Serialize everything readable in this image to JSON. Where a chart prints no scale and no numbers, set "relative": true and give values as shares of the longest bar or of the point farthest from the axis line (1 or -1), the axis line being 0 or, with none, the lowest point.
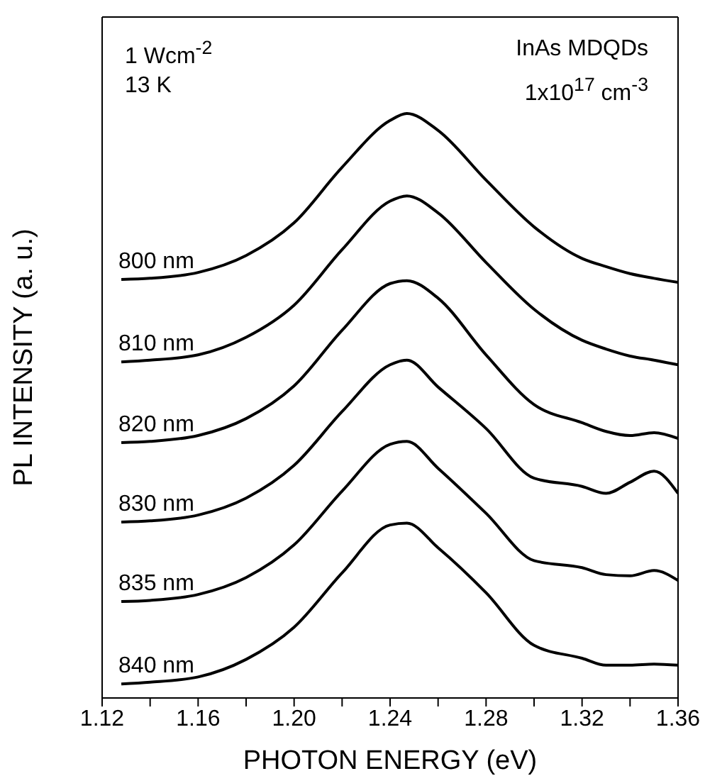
{
  "chart_data": {
    "type": "line",
    "relative": true,
    "xlabel": "PHOTON ENERGY (eV)",
    "ylabel": "PL INTENSITY (a. u.)",
    "annotations": [
      "1 Wcm$^{-2}$",
      "13 K",
      "InAs MDQDs",
      "1x10$^{17}$ cm$^{-3}$"
    ],
    "xlim": [
      1.12,
      1.36
    ],
    "xticks": [
      1.12,
      {
        "value": 1.14,
        "label": null
      },
      1.16,
      {
        "value": 1.18,
        "label": null
      },
      {
        "value": 1.2,
        "label": "1.20"
      },
      {
        "value": 1.22,
        "label": null
      },
      1.24,
      {
        "value": 1.26,
        "label": null
      },
      1.28,
      {
        "value": 1.3,
        "label": null
      },
      1.32,
      {
        "value": 1.34,
        "label": null
      },
      1.36
    ],
    "x": [
      1.128,
      1.14,
      1.16,
      1.18,
      1.2,
      1.22,
      1.24,
      1.247,
      1.26,
      1.28,
      1.3,
      1.32,
      1.33,
      1.34,
      1.35,
      1.36
    ],
    "marker": "none",
    "line_style": "solid",
    "legend": false,
    "series": [
      {
        "name": "800 nm",
        "color": "#000000",
        "values": [
          0.716,
          0.718,
          0.728,
          0.757,
          0.813,
          0.908,
          0.988,
          1.0,
          0.971,
          0.886,
          0.806,
          0.752,
          0.738,
          0.726,
          0.718,
          0.711
        ]
      },
      {
        "name": "810 nm",
        "color": "#000000",
        "values": [
          0.575,
          0.578,
          0.587,
          0.617,
          0.672,
          0.767,
          0.85,
          0.859,
          0.83,
          0.745,
          0.665,
          0.612,
          0.597,
          0.585,
          0.578,
          0.57
        ]
      },
      {
        "name": "820 nm",
        "color": "#000000",
        "values": [
          0.437,
          0.439,
          0.449,
          0.478,
          0.534,
          0.629,
          0.709,
          0.714,
          0.684,
          0.587,
          0.502,
          0.471,
          0.456,
          0.449,
          0.454,
          0.444
        ]
      },
      {
        "name": "830 nm",
        "color": "#000000",
        "values": [
          0.301,
          0.303,
          0.313,
          0.342,
          0.398,
          0.49,
          0.57,
          0.578,
          0.532,
          0.461,
          0.376,
          0.362,
          0.35,
          0.369,
          0.388,
          0.35
        ]
      },
      {
        "name": "835 nm",
        "color": "#000000",
        "values": [
          0.165,
          0.167,
          0.177,
          0.206,
          0.262,
          0.354,
          0.434,
          0.439,
          0.393,
          0.316,
          0.235,
          0.223,
          0.211,
          0.209,
          0.218,
          0.201
        ]
      },
      {
        "name": "840 nm",
        "color": "#000000",
        "values": [
          0.024,
          0.027,
          0.036,
          0.066,
          0.121,
          0.214,
          0.296,
          0.299,
          0.257,
          0.18,
          0.09,
          0.068,
          0.056,
          0.056,
          0.058,
          0.056
        ]
      }
    ]
  }
}
